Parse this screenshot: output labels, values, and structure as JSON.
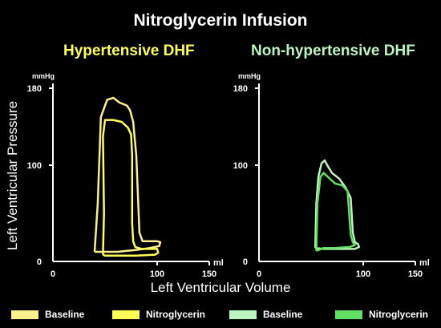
{
  "title": "Nitroglycerin Infusion",
  "y_axis_title": "Left Ventricular Pressure",
  "x_axis_title": "Left Ventricular Volume",
  "legend": [
    {
      "label": "Baseline",
      "color": "#fbf08e"
    },
    {
      "label": "Nitroglycerin",
      "color": "#ffff55"
    },
    {
      "label": "Baseline",
      "color": "#bcf5bf"
    },
    {
      "label": "Nitroglycerin",
      "color": "#63e063"
    }
  ],
  "chart_data": [
    {
      "type": "line",
      "title": "Hypertensive DHF",
      "title_color": "#ffff55",
      "y_unit": "mmHg",
      "x_unit": "ml",
      "xlim": [
        0,
        150
      ],
      "ylim": [
        0,
        180
      ],
      "x_ticks": [
        0,
        100,
        150
      ],
      "y_ticks": [
        0,
        100,
        180
      ],
      "series": [
        {
          "color": "#fbf08e",
          "points": [
            [
              40,
              10
            ],
            [
              43,
              60
            ],
            [
              46,
              150
            ],
            [
              52,
              168
            ],
            [
              58,
              170
            ],
            [
              64,
              165
            ],
            [
              71,
              162
            ],
            [
              74,
              157
            ],
            [
              77,
              145
            ],
            [
              80,
              110
            ],
            [
              83,
              30
            ],
            [
              86,
              21
            ],
            [
              91,
              21
            ],
            [
              100,
              21
            ],
            [
              103,
              20
            ],
            [
              102,
              16
            ],
            [
              93,
              14
            ],
            [
              80,
              12
            ],
            [
              62,
              10
            ],
            [
              48,
              10
            ],
            [
              40,
              10
            ]
          ]
        },
        {
          "color": "#ffff55",
          "points": [
            [
              48,
              7
            ],
            [
              49,
              50
            ],
            [
              48,
              130
            ],
            [
              50,
              147
            ],
            [
              58,
              147
            ],
            [
              66,
              145
            ],
            [
              72,
              139
            ],
            [
              75,
              132
            ],
            [
              76,
              110
            ],
            [
              76,
              40
            ],
            [
              77,
              21
            ],
            [
              79,
              15
            ],
            [
              85,
              13
            ],
            [
              100,
              13
            ],
            [
              101,
              9
            ],
            [
              98,
              7
            ],
            [
              80,
              6
            ],
            [
              62,
              6
            ],
            [
              50,
              6
            ],
            [
              48,
              7
            ]
          ]
        }
      ]
    },
    {
      "type": "line",
      "title": "Non-hypertensive DHF",
      "title_color": "#bcf5bf",
      "y_unit": "mmHg",
      "x_unit": "ml",
      "xlim": [
        0,
        150
      ],
      "ylim": [
        0,
        180
      ],
      "x_ticks": [
        0,
        100,
        150
      ],
      "y_ticks": [
        0,
        100,
        180
      ],
      "series": [
        {
          "color": "#bcf5bf",
          "points": [
            [
              54,
              14
            ],
            [
              55,
              60
            ],
            [
              57,
              88
            ],
            [
              60,
              102
            ],
            [
              63,
              105
            ],
            [
              66,
              99
            ],
            [
              70,
              92
            ],
            [
              77,
              86
            ],
            [
              83,
              77
            ],
            [
              88,
              66
            ],
            [
              90,
              30
            ],
            [
              92,
              20
            ],
            [
              95,
              18
            ],
            [
              96,
              15
            ],
            [
              92,
              13
            ],
            [
              80,
              13
            ],
            [
              62,
              13
            ],
            [
              54,
              14
            ]
          ]
        },
        {
          "color": "#63e063",
          "points": [
            [
              55,
              11
            ],
            [
              56,
              60
            ],
            [
              59,
              88
            ],
            [
              62,
              92
            ],
            [
              66,
              88
            ],
            [
              73,
              81
            ],
            [
              80,
              79
            ],
            [
              85,
              73
            ],
            [
              87,
              42
            ],
            [
              88,
              28
            ],
            [
              90,
              20
            ],
            [
              92,
              17
            ],
            [
              87,
              15
            ],
            [
              72,
              14
            ],
            [
              62,
              14
            ],
            [
              55,
              11
            ]
          ]
        }
      ]
    }
  ]
}
